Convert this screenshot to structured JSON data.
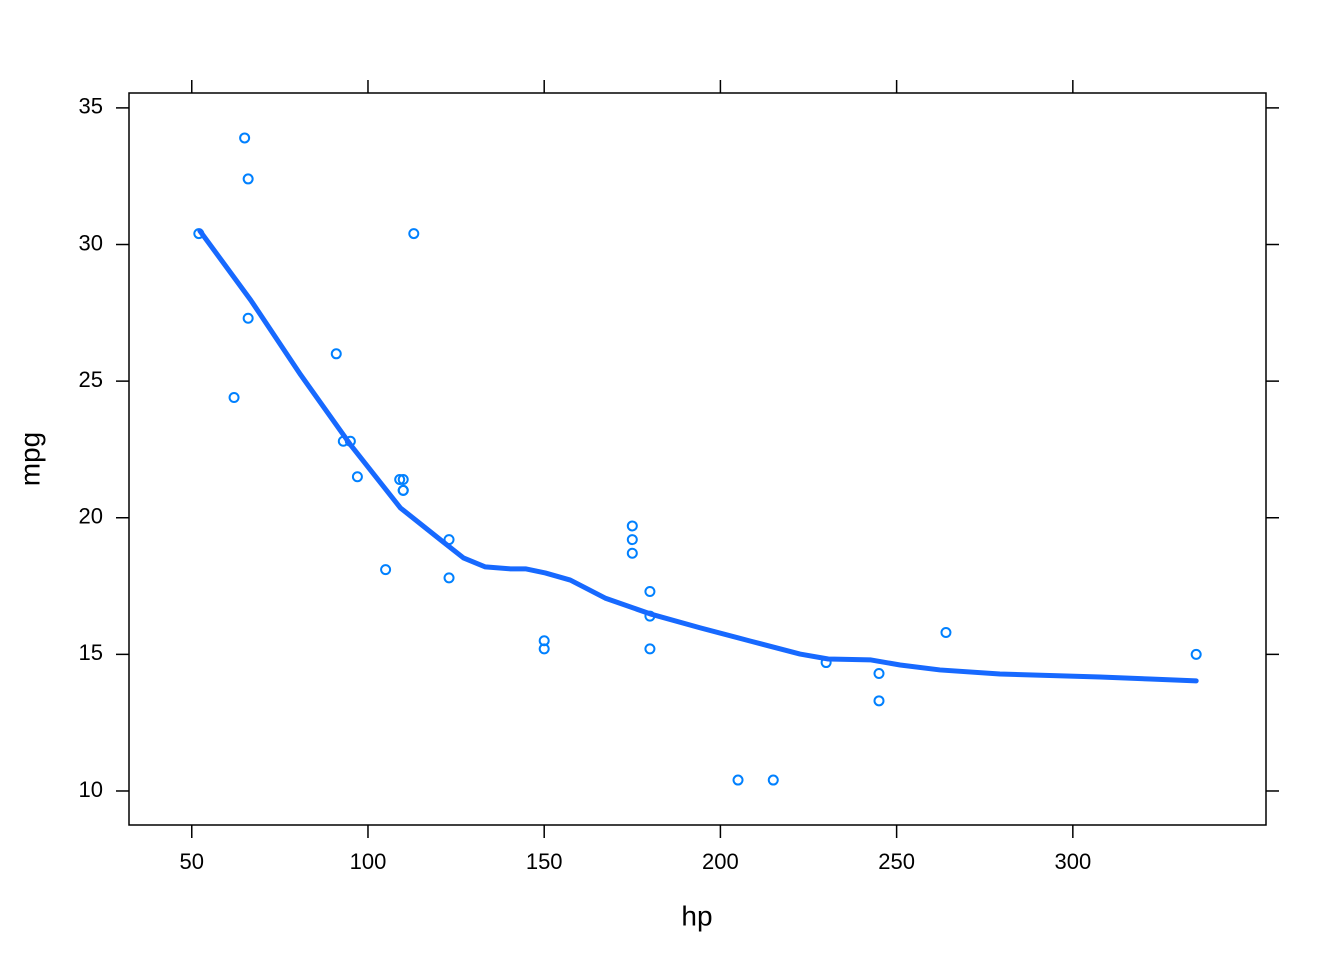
{
  "chart_data": {
    "type": "scatter",
    "xlabel": "hp",
    "ylabel": "mpg",
    "xlim": [
      32.19,
      354.81
    ],
    "ylim": [
      8.755,
      35.545
    ],
    "xticks": [
      50,
      100,
      150,
      200,
      250,
      300
    ],
    "yticks": [
      10,
      15,
      20,
      25,
      30,
      35
    ],
    "series": [
      {
        "type": "scatter",
        "color": "#0080ff",
        "x": [
          110,
          110,
          93,
          110,
          175,
          105,
          245,
          62,
          95,
          123,
          123,
          180,
          180,
          180,
          205,
          215,
          230,
          66,
          52,
          65,
          97,
          150,
          150,
          245,
          175,
          66,
          91,
          113,
          264,
          175,
          335,
          109
        ],
        "values": [
          21,
          21,
          22.8,
          21.4,
          18.7,
          18.1,
          14.3,
          24.4,
          22.8,
          19.2,
          17.8,
          16.4,
          17.3,
          15.2,
          10.4,
          10.4,
          14.7,
          32.4,
          30.4,
          33.9,
          21.5,
          15.5,
          15.2,
          13.3,
          19.2,
          27.3,
          26,
          30.4,
          15.8,
          19.7,
          15,
          21.4
        ]
      },
      {
        "type": "line",
        "color": "#1769ff",
        "x": [
          52.3,
          66.7,
          80.9,
          95.1,
          109.2,
          120.6,
          127.1,
          133.3,
          140.4,
          144.7,
          150.3,
          157.4,
          167.3,
          180.1,
          194.3,
          208.4,
          222.6,
          230.6,
          242.5,
          251,
          262.3,
          279.3,
          307.7,
          321.9,
          335
        ],
        "values": [
          30.5,
          27.97,
          25.23,
          22.66,
          20.36,
          19.19,
          18.53,
          18.2,
          18.13,
          18.13,
          17.98,
          17.72,
          17.06,
          16.48,
          15.97,
          15.49,
          15.01,
          14.83,
          14.8,
          14.61,
          14.43,
          14.28,
          14.17,
          14.1,
          14.03
        ]
      }
    ]
  }
}
